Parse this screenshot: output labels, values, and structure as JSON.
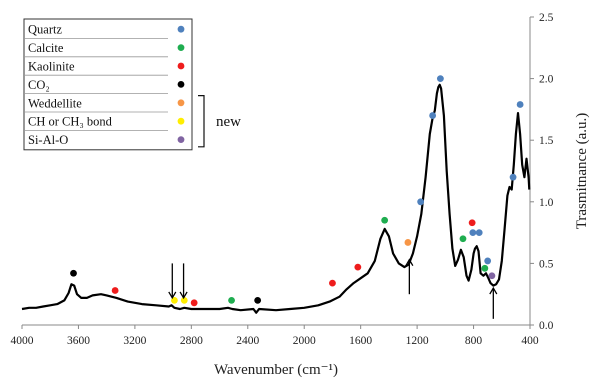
{
  "chart_data": {
    "type": "line",
    "xlabel": "Wavenumber (cm⁻¹)",
    "ylabel": "Trasmitnance (a.u.)",
    "xlim": [
      4000,
      400
    ],
    "ylim": [
      0,
      2.5
    ],
    "x_reversed": true,
    "xticks": [
      4000,
      3600,
      3200,
      2800,
      2400,
      2000,
      1600,
      1200,
      800,
      400
    ],
    "yticks": [
      0.0,
      0.5,
      1.0,
      1.5,
      2.0,
      2.5
    ],
    "y_axis_side": "right",
    "grid": false,
    "series": [
      {
        "color": "#000000",
        "points": [
          [
            4000,
            0.13
          ],
          [
            3950,
            0.14
          ],
          [
            3900,
            0.14
          ],
          [
            3850,
            0.15
          ],
          [
            3800,
            0.16
          ],
          [
            3750,
            0.17
          ],
          [
            3700,
            0.2
          ],
          [
            3670,
            0.26
          ],
          [
            3650,
            0.33
          ],
          [
            3630,
            0.32
          ],
          [
            3610,
            0.25
          ],
          [
            3580,
            0.22
          ],
          [
            3540,
            0.22
          ],
          [
            3500,
            0.24
          ],
          [
            3440,
            0.25
          ],
          [
            3400,
            0.24
          ],
          [
            3330,
            0.22
          ],
          [
            3250,
            0.19
          ],
          [
            3150,
            0.17
          ],
          [
            3050,
            0.16
          ],
          [
            2960,
            0.15
          ],
          [
            2940,
            0.16
          ],
          [
            2920,
            0.14
          ],
          [
            2880,
            0.13
          ],
          [
            2850,
            0.14
          ],
          [
            2800,
            0.13
          ],
          [
            2700,
            0.13
          ],
          [
            2600,
            0.13
          ],
          [
            2540,
            0.14
          ],
          [
            2510,
            0.13
          ],
          [
            2450,
            0.12
          ],
          [
            2360,
            0.13
          ],
          [
            2340,
            0.1
          ],
          [
            2320,
            0.13
          ],
          [
            2200,
            0.12
          ],
          [
            2100,
            0.13
          ],
          [
            2000,
            0.14
          ],
          [
            1900,
            0.16
          ],
          [
            1820,
            0.19
          ],
          [
            1750,
            0.23
          ],
          [
            1700,
            0.29
          ],
          [
            1650,
            0.34
          ],
          [
            1600,
            0.38
          ],
          [
            1550,
            0.42
          ],
          [
            1500,
            0.52
          ],
          [
            1460,
            0.7
          ],
          [
            1430,
            0.78
          ],
          [
            1400,
            0.72
          ],
          [
            1370,
            0.58
          ],
          [
            1330,
            0.5
          ],
          [
            1290,
            0.47
          ],
          [
            1260,
            0.49
          ],
          [
            1230,
            0.58
          ],
          [
            1200,
            0.72
          ],
          [
            1170,
            0.9
          ],
          [
            1140,
            1.2
          ],
          [
            1110,
            1.55
          ],
          [
            1090,
            1.68
          ],
          [
            1075,
            1.74
          ],
          [
            1060,
            1.88
          ],
          [
            1050,
            1.93
          ],
          [
            1040,
            1.95
          ],
          [
            1030,
            1.92
          ],
          [
            1010,
            1.7
          ],
          [
            990,
            1.25
          ],
          [
            970,
            0.9
          ],
          [
            950,
            0.62
          ],
          [
            930,
            0.48
          ],
          [
            910,
            0.53
          ],
          [
            890,
            0.61
          ],
          [
            870,
            0.55
          ],
          [
            850,
            0.4
          ],
          [
            835,
            0.36
          ],
          [
            815,
            0.45
          ],
          [
            800,
            0.58
          ],
          [
            790,
            0.62
          ],
          [
            778,
            0.64
          ],
          [
            765,
            0.6
          ],
          [
            750,
            0.42
          ],
          [
            730,
            0.4
          ],
          [
            712,
            0.42
          ],
          [
            695,
            0.38
          ],
          [
            680,
            0.34
          ],
          [
            660,
            0.32
          ],
          [
            640,
            0.33
          ],
          [
            620,
            0.37
          ],
          [
            600,
            0.52
          ],
          [
            580,
            0.78
          ],
          [
            560,
            1.05
          ],
          [
            545,
            1.12
          ],
          [
            530,
            1.1
          ],
          [
            515,
            1.3
          ],
          [
            500,
            1.55
          ],
          [
            485,
            1.72
          ],
          [
            470,
            1.55
          ],
          [
            455,
            1.3
          ],
          [
            440,
            1.2
          ],
          [
            425,
            1.35
          ],
          [
            410,
            1.2
          ],
          [
            405,
            1.1
          ]
        ]
      }
    ],
    "legend": {
      "position": "top-left",
      "entries": [
        {
          "label": "Quartz",
          "color": "#4f81bd"
        },
        {
          "label": "Calcite",
          "color": "#1fad50"
        },
        {
          "label": "Kaolinite",
          "color": "#ee1c1c"
        },
        {
          "label": "CO₂",
          "color": "#000000"
        },
        {
          "label": "Weddellite",
          "color": "#f79646"
        },
        {
          "label": "CH or CH₃ bond",
          "color": "#ffee00"
        },
        {
          "label": "Si-Al-O",
          "color": "#8064a2"
        }
      ],
      "bracket_label": "new"
    },
    "markers": [
      {
        "group": "Quartz",
        "x": 1175,
        "y": 1.0
      },
      {
        "group": "Quartz",
        "x": 1090,
        "y": 1.7
      },
      {
        "group": "Quartz",
        "x": 1035,
        "y": 2.0
      },
      {
        "group": "Quartz",
        "x": 805,
        "y": 0.75
      },
      {
        "group": "Quartz",
        "x": 760,
        "y": 0.75
      },
      {
        "group": "Quartz",
        "x": 700,
        "y": 0.52
      },
      {
        "group": "Quartz",
        "x": 520,
        "y": 1.2
      },
      {
        "group": "Quartz",
        "x": 470,
        "y": 1.79
      },
      {
        "group": "Calcite",
        "x": 2515,
        "y": 0.2
      },
      {
        "group": "Calcite",
        "x": 1430,
        "y": 0.85
      },
      {
        "group": "Calcite",
        "x": 875,
        "y": 0.7
      },
      {
        "group": "Calcite",
        "x": 720,
        "y": 0.46
      },
      {
        "group": "Kaolinite",
        "x": 3340,
        "y": 0.28
      },
      {
        "group": "Kaolinite",
        "x": 2780,
        "y": 0.18
      },
      {
        "group": "Kaolinite",
        "x": 1800,
        "y": 0.34
      },
      {
        "group": "Kaolinite",
        "x": 1620,
        "y": 0.47
      },
      {
        "group": "Kaolinite",
        "x": 810,
        "y": 0.83
      },
      {
        "group": "CO₂",
        "x": 3635,
        "y": 0.42
      },
      {
        "group": "CO₂",
        "x": 2330,
        "y": 0.2
      },
      {
        "group": "Weddellite",
        "x": 1265,
        "y": 0.67
      },
      {
        "group": "CH or CH₃ bond",
        "x": 2920,
        "y": 0.2
      },
      {
        "group": "CH or CH₃ bond",
        "x": 2850,
        "y": 0.2
      },
      {
        "group": "Si-Al-O",
        "x": 670,
        "y": 0.4
      }
    ],
    "arrows": [
      {
        "x": 2935,
        "y_from": 0.5,
        "y_to": 0.22
      },
      {
        "x": 2855,
        "y_from": 0.5,
        "y_to": 0.22
      },
      {
        "x": 1255,
        "y_from": 0.25,
        "y_to": 0.53
      },
      {
        "x": 660,
        "y_from": 0.05,
        "y_to": 0.3
      }
    ]
  }
}
